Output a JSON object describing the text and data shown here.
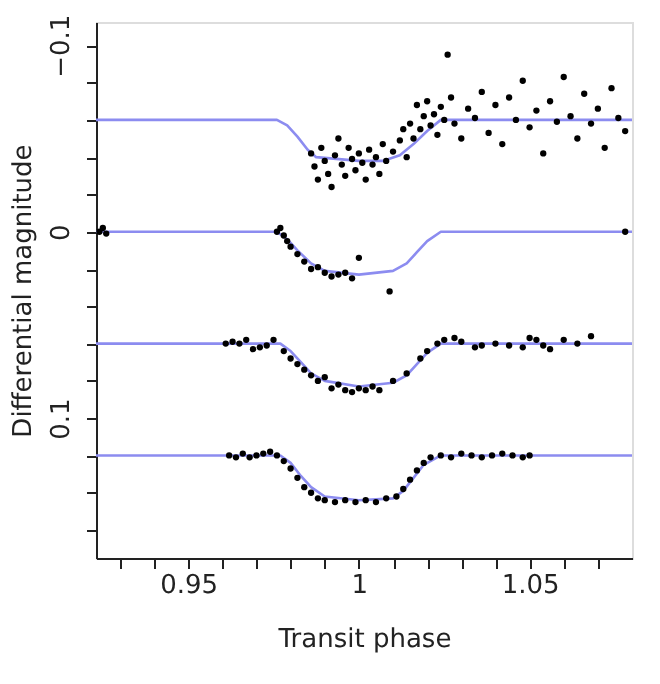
{
  "chart_data": {
    "type": "scatter",
    "xlabel": "Transit phase",
    "ylabel": "Differential magnitude",
    "xlim": [
      0.923,
      1.08
    ],
    "ylim": [
      0.175,
      -0.1125
    ],
    "xticks": [
      {
        "value": 0.93,
        "label": null
      },
      {
        "value": 0.94,
        "label": null
      },
      0.95,
      {
        "value": 0.96,
        "label": null
      },
      {
        "value": 0.97,
        "label": null
      },
      {
        "value": 0.98,
        "label": null
      },
      {
        "value": 0.99,
        "label": null
      },
      1,
      {
        "value": 1.01,
        "label": null
      },
      {
        "value": 1.02,
        "label": null
      },
      {
        "value": 1.03,
        "label": null
      },
      {
        "value": 1.04,
        "label": null
      },
      1.05,
      {
        "value": 1.06,
        "label": null
      },
      {
        "value": 1.07,
        "label": null
      }
    ],
    "yticks": [
      {
        "value": -0.1,
        "label": "−0.1"
      },
      {
        "value": -0.08,
        "label": null
      },
      {
        "value": -0.06,
        "label": null
      },
      {
        "value": -0.04,
        "label": null
      },
      {
        "value": -0.02,
        "label": null
      },
      0,
      {
        "value": 0.02,
        "label": null
      },
      {
        "value": 0.04,
        "label": null
      },
      {
        "value": 0.06,
        "label": null
      },
      {
        "value": 0.08,
        "label": null
      },
      0.1,
      {
        "value": 0.12,
        "label": null
      },
      {
        "value": 0.14,
        "label": null
      },
      {
        "value": 0.16,
        "label": null
      }
    ],
    "grid": false,
    "marker": "circle",
    "series": [
      {
        "type": "line",
        "marker": "none",
        "color": "#8c8cf0",
        "x": [
          0.923,
          0.976,
          0.979,
          0.982,
          0.985,
          0.9875,
          1.0,
          1.007,
          1.012,
          1.016,
          1.02,
          1.024,
          1.08
        ],
        "values": [
          -0.06,
          -0.06,
          -0.057,
          -0.051,
          -0.044,
          -0.04,
          -0.038,
          -0.038,
          -0.041,
          -0.047,
          -0.054,
          -0.06,
          -0.06
        ]
      },
      {
        "type": "line",
        "marker": "none",
        "color": "#8c8cf0",
        "x": [
          0.923,
          0.976,
          0.979,
          0.982,
          0.986,
          0.99,
          1.0,
          1.01,
          1.014,
          1.017,
          1.02,
          1.024,
          1.08
        ],
        "values": [
          0,
          0,
          0.004,
          0.01,
          0.017,
          0.021,
          0.023,
          0.021,
          0.017,
          0.011,
          0.005,
          0,
          0
        ]
      },
      {
        "type": "line",
        "marker": "none",
        "color": "#8c8cf0",
        "x": [
          0.923,
          0.977,
          0.98,
          0.983,
          0.986,
          0.99,
          1.0,
          1.01,
          1.014,
          1.017,
          1.02,
          1.024,
          1.08
        ],
        "values": [
          0.06,
          0.06,
          0.064,
          0.07,
          0.076,
          0.08,
          0.083,
          0.081,
          0.077,
          0.071,
          0.065,
          0.06,
          0.06
        ]
      },
      {
        "type": "line",
        "marker": "none",
        "color": "#8c8cf0",
        "x": [
          0.923,
          0.977,
          0.98,
          0.983,
          0.986,
          0.99,
          1.0,
          1.01,
          1.013,
          1.016,
          1.019,
          1.024,
          1.08
        ],
        "values": [
          0.12,
          0.12,
          0.124,
          0.131,
          0.137,
          0.142,
          0.144,
          0.143,
          0.139,
          0.132,
          0.125,
          0.12,
          0.12
        ]
      },
      {
        "color": "#000000",
        "x": [
          0.986,
          0.987,
          0.988,
          0.989,
          0.99,
          0.991,
          0.992,
          0.993,
          0.994,
          0.995,
          0.996,
          0.997,
          0.998,
          0.999,
          1.0,
          1.001,
          1.002,
          1.003,
          1.004,
          1.005,
          1.006,
          1.007,
          1.008,
          1.01,
          1.012,
          1.013,
          1.014,
          1.015,
          1.016,
          1.017,
          1.018,
          1.019,
          1.02,
          1.021,
          1.022,
          1.023,
          1.024,
          1.025,
          1.026,
          1.027,
          1.028,
          1.03,
          1.032,
          1.034,
          1.036,
          1.038,
          1.04,
          1.042,
          1.044,
          1.046,
          1.048,
          1.05,
          1.052,
          1.054,
          1.056,
          1.058,
          1.06,
          1.062,
          1.064,
          1.066,
          1.068,
          1.07,
          1.072,
          1.074,
          1.076,
          1.078
        ],
        "values": [
          -0.042,
          -0.035,
          -0.028,
          -0.045,
          -0.038,
          -0.031,
          -0.024,
          -0.041,
          -0.05,
          -0.036,
          -0.03,
          -0.045,
          -0.039,
          -0.033,
          -0.042,
          -0.037,
          -0.028,
          -0.044,
          -0.036,
          -0.04,
          -0.031,
          -0.047,
          -0.038,
          -0.043,
          -0.049,
          -0.055,
          -0.04,
          -0.058,
          -0.05,
          -0.068,
          -0.055,
          -0.062,
          -0.07,
          -0.057,
          -0.063,
          -0.052,
          -0.067,
          -0.06,
          -0.095,
          -0.072,
          -0.058,
          -0.05,
          -0.066,
          -0.061,
          -0.075,
          -0.053,
          -0.068,
          -0.047,
          -0.072,
          -0.06,
          -0.081,
          -0.056,
          -0.065,
          -0.042,
          -0.07,
          -0.059,
          -0.083,
          -0.062,
          -0.05,
          -0.074,
          -0.058,
          -0.066,
          -0.045,
          -0.077,
          -0.061,
          -0.054
        ]
      },
      {
        "color": "#000000",
        "x": [
          0.924,
          0.925,
          0.926,
          0.976,
          0.977,
          0.978,
          0.979,
          0.98,
          0.982,
          0.984,
          0.986,
          0.988,
          0.99,
          0.992,
          0.994,
          0.996,
          0.998,
          1.0,
          1.009,
          1.078
        ],
        "values": [
          0.0,
          -0.002,
          0.001,
          0.0,
          -0.002,
          0.002,
          0.005,
          0.008,
          0.012,
          0.016,
          0.02,
          0.019,
          0.022,
          0.024,
          0.023,
          0.022,
          0.025,
          0.014,
          0.032,
          0.0
        ]
      },
      {
        "color": "#000000",
        "x": [
          0.961,
          0.963,
          0.965,
          0.967,
          0.969,
          0.971,
          0.973,
          0.975,
          0.978,
          0.98,
          0.982,
          0.984,
          0.986,
          0.988,
          0.99,
          0.992,
          0.994,
          0.996,
          0.998,
          1.0,
          1.002,
          1.004,
          1.006,
          1.01,
          1.014,
          1.018,
          1.02,
          1.023,
          1.025,
          1.028,
          1.03,
          1.034,
          1.036,
          1.04,
          1.044,
          1.048,
          1.05,
          1.052,
          1.054,
          1.056,
          1.06,
          1.064,
          1.068
        ],
        "values": [
          0.06,
          0.059,
          0.06,
          0.058,
          0.063,
          0.062,
          0.061,
          0.058,
          0.064,
          0.068,
          0.071,
          0.074,
          0.077,
          0.08,
          0.078,
          0.084,
          0.082,
          0.085,
          0.086,
          0.084,
          0.085,
          0.083,
          0.085,
          0.08,
          0.076,
          0.068,
          0.064,
          0.06,
          0.058,
          0.057,
          0.059,
          0.062,
          0.061,
          0.06,
          0.061,
          0.062,
          0.057,
          0.058,
          0.061,
          0.063,
          0.058,
          0.06,
          0.056
        ]
      },
      {
        "color": "#000000",
        "x": [
          0.962,
          0.964,
          0.966,
          0.968,
          0.97,
          0.972,
          0.974,
          0.976,
          0.978,
          0.98,
          0.982,
          0.984,
          0.986,
          0.988,
          0.99,
          0.993,
          0.996,
          0.999,
          1.002,
          1.005,
          1.008,
          1.011,
          1.013,
          1.015,
          1.017,
          1.019,
          1.021,
          1.024,
          1.027,
          1.03,
          1.033,
          1.036,
          1.039,
          1.042,
          1.045,
          1.048,
          1.05
        ],
        "values": [
          0.12,
          0.121,
          0.119,
          0.121,
          0.12,
          0.119,
          0.118,
          0.12,
          0.123,
          0.127,
          0.132,
          0.137,
          0.14,
          0.143,
          0.144,
          0.145,
          0.144,
          0.145,
          0.144,
          0.145,
          0.143,
          0.142,
          0.138,
          0.133,
          0.128,
          0.124,
          0.121,
          0.12,
          0.121,
          0.119,
          0.12,
          0.121,
          0.12,
          0.119,
          0.12,
          0.121,
          0.12
        ]
      }
    ]
  }
}
